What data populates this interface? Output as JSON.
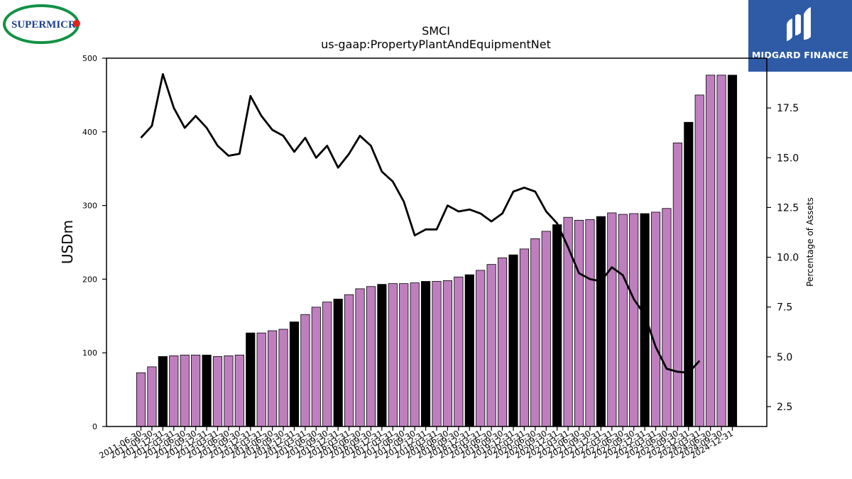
{
  "brand": {
    "left_logo_text": "SUPERMICR",
    "right_logo_text": "MIDGARD FINANCE",
    "colors": {
      "supermicro_blue": "#1b3f8f",
      "supermicro_green": "#129144",
      "supermicro_red": "#e1251b",
      "midgard_blue": "#2f5aa6"
    }
  },
  "chart_data": {
    "type": "bar",
    "title": "SMCI",
    "subtitle": "us-gaap:PropertyPlantAndEquipmentNet",
    "ylabel": "USDm",
    "y2label": "Percentage of Assets",
    "ylim": [
      0,
      500
    ],
    "y2lim": [
      1.5,
      20.0
    ],
    "yticks": [
      0,
      100,
      200,
      300,
      400,
      500
    ],
    "y2ticks": [
      2.5,
      5.0,
      7.5,
      10.0,
      12.5,
      15.0,
      17.5
    ],
    "y2tick_labels": [
      "2.5",
      "5.0",
      "7.5",
      "10.0",
      "12.5",
      "15.0",
      "17.5"
    ],
    "grid": false,
    "colors": {
      "bar": "#bf7fbf",
      "bar_fiscal_year_end": "#000000",
      "bar_edge": "#000000",
      "line": "#000000"
    },
    "categories": [
      "2011-06-30",
      "2011-09-30",
      "2011-12-31",
      "2012-03-31",
      "2012-06-30",
      "2012-09-30",
      "2012-12-31",
      "2013-03-31",
      "2013-06-30",
      "2013-09-30",
      "2013-12-31",
      "2014-03-31",
      "2014-06-30",
      "2014-09-30",
      "2014-12-31",
      "2015-03-31",
      "2015-06-30",
      "2015-09-30",
      "2015-12-31",
      "2016-03-31",
      "2016-06-30",
      "2016-09-30",
      "2016-12-31",
      "2017-03-31",
      "2017-06-30",
      "2017-09-30",
      "2017-12-31",
      "2018-03-31",
      "2018-06-30",
      "2018-09-30",
      "2018-12-31",
      "2019-03-31",
      "2019-06-30",
      "2019-09-30",
      "2019-12-31",
      "2020-03-31",
      "2020-06-30",
      "2020-09-30",
      "2020-12-31",
      "2021-03-31",
      "2021-06-30",
      "2021-09-30",
      "2021-12-31",
      "2022-03-31",
      "2022-06-30",
      "2022-09-30",
      "2022-12-31",
      "2023-03-31",
      "2023-06-30",
      "2023-09-30",
      "2023-12-31",
      "2024-03-31",
      "2024-06-30",
      "2024-09-30",
      "2024-12-31"
    ],
    "tick_labels": [
      "2011-06-30",
      "2011-09-30",
      "2011-12-31",
      "2012-03-31",
      "2012-06-30",
      "2012-09-30",
      "2012-12-31",
      "2013-03-31",
      "2013-06-30",
      "2013-09-30",
      "2013-12-31",
      "2014-03-31",
      "2014-06-30",
      "2014-09-30",
      "2014-12-31",
      "2015-03-31",
      "2015-06-30",
      "2015-09-30",
      "2015-12-31",
      "2016-03-31",
      "2016-06-30",
      "2016-09-30",
      "2016-12-31",
      "2017-03-31",
      "2017-06-30",
      "2017-09-30",
      "2017-12-31",
      "2018-03-31",
      "2018-06-30",
      "2018-09-30",
      "2018-12-31",
      "2019-03-31",
      "2019-06-30",
      "2019-09-30",
      "2019-12-31",
      "2020-03-31",
      "2020-06-30",
      "2020-09-30",
      "2020-12-31",
      "2021-03-31",
      "2021-06-30",
      "2021-09-30",
      "2021-12-31",
      "2022-03-31",
      "2022-06-30",
      "2022-09-30",
      "2022-12-31",
      "2023-03-31",
      "2023-06-30",
      "2023-09-30",
      "2023-12-31",
      "2024-03-31",
      "2024-06-30",
      "2024-09-30",
      "2024-12-31"
    ],
    "fiscal_year_end": [
      false,
      false,
      true,
      false,
      false,
      false,
      true,
      false,
      false,
      false,
      true,
      false,
      false,
      false,
      true,
      false,
      false,
      false,
      true,
      false,
      false,
      false,
      true,
      false,
      false,
      false,
      true,
      false,
      false,
      false,
      true,
      false,
      false,
      false,
      true,
      false,
      false,
      false,
      true,
      false,
      false,
      false,
      true,
      false,
      false,
      false,
      true,
      false,
      false,
      false,
      true,
      false,
      false,
      false,
      true
    ],
    "series": [
      {
        "name": "USDm",
        "axis": "left",
        "type": "bar",
        "values": [
          73,
          81,
          95,
          96,
          97,
          97,
          97,
          95,
          96,
          97,
          127,
          127,
          130,
          132,
          142,
          152,
          162,
          169,
          173,
          179,
          187,
          190,
          193,
          194,
          194,
          195,
          197,
          197,
          198,
          203,
          206,
          212,
          220,
          229,
          233,
          241,
          255,
          265,
          274,
          284,
          280,
          281,
          285,
          290,
          288,
          289,
          289,
          291,
          296,
          385,
          413,
          450,
          477,
          477,
          477
        ]
      },
      {
        "name": "Percentage of Assets",
        "axis": "right",
        "type": "line",
        "values": [
          16.0,
          16.6,
          19.2,
          17.5,
          16.5,
          17.1,
          16.5,
          15.6,
          15.1,
          15.2,
          18.1,
          17.1,
          16.4,
          16.1,
          15.3,
          16.0,
          15.0,
          15.6,
          14.5,
          15.2,
          16.1,
          15.6,
          14.3,
          13.8,
          12.8,
          11.1,
          11.4,
          11.4,
          12.6,
          12.3,
          12.4,
          12.2,
          11.8,
          12.2,
          13.3,
          13.5,
          13.3,
          12.3,
          11.7,
          10.5,
          9.2,
          8.9,
          8.8,
          9.5,
          9.1,
          7.9,
          7.1,
          5.5,
          4.4,
          4.25,
          4.2,
          4.8,
          null,
          null,
          null
        ]
      }
    ]
  }
}
